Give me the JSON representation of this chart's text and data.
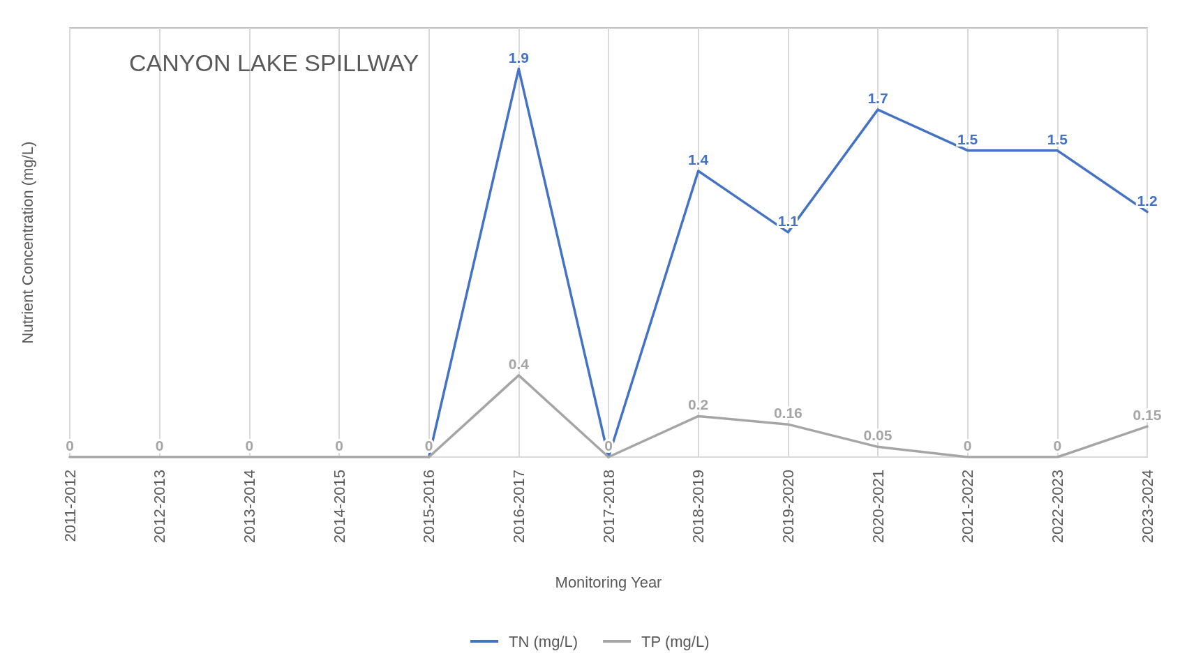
{
  "chart_data": {
    "type": "line",
    "title": "CANYON LAKE SPILLWAY",
    "xlabel": "Monitoring Year",
    "ylabel": "Nutrient Concentration (mg/L)",
    "categories": [
      "2011-2012",
      "2012-2013",
      "2013-2014",
      "2014-2015",
      "2015-2016",
      "2016-2017",
      "2017-2018",
      "2018-2019",
      "2019-2020",
      "2020-2021",
      "2021-2022",
      "2022-2023",
      "2023-2024"
    ],
    "series": [
      {
        "name": "TN (mg/L)",
        "color": "#4472c4",
        "values": [
          null,
          null,
          null,
          null,
          0,
          1.9,
          0,
          1.4,
          1.1,
          1.7,
          1.5,
          1.5,
          1.2
        ],
        "value_labels": [
          null,
          null,
          null,
          null,
          null,
          "1.9",
          null,
          "1.4",
          "1.1",
          "1.7",
          "1.5",
          "1.5",
          "1.2"
        ]
      },
      {
        "name": "TP (mg/L)",
        "color": "#a5a5a5",
        "values": [
          0,
          0,
          0,
          0,
          0,
          0.4,
          0,
          0.2,
          0.16,
          0.05,
          0,
          0,
          0.15
        ]
      }
    ],
    "data_labels": true,
    "grid": "x",
    "legend": "bottom",
    "marker": "none",
    "line_style": "solid"
  }
}
